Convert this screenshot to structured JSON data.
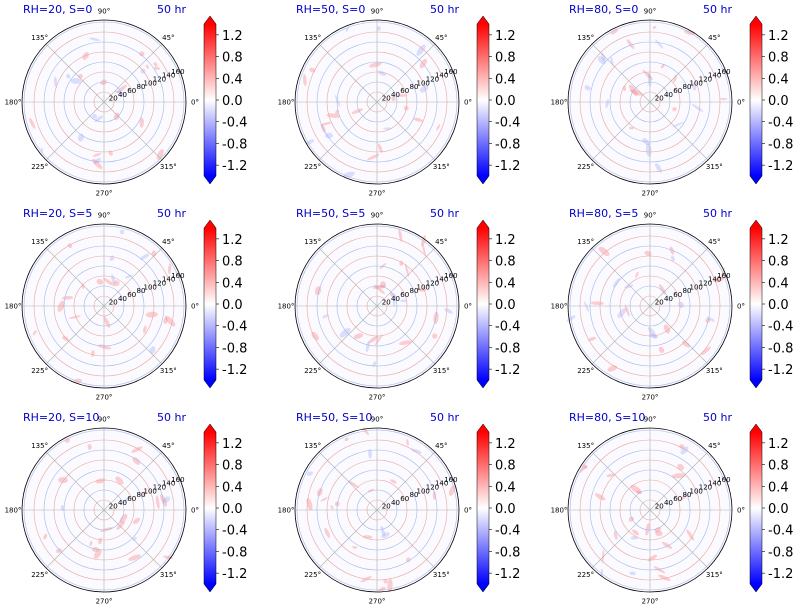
{
  "figure": {
    "rows": 3,
    "cols": 3
  },
  "colors": {
    "title": "#0000cc",
    "positive": "#ff0000",
    "negative": "#0000ff",
    "neutral": "#ffffff",
    "grid": "#b0b0b0"
  },
  "chart_data": [
    {
      "type": "heatmap",
      "projection": "polar",
      "title_left": "RH=20, S=0",
      "title_right": "50 hr",
      "radial_ticks": [
        "20",
        "40",
        "60",
        "80",
        "100",
        "120",
        "140",
        "160"
      ],
      "angle_ticks": [
        "0°",
        "45°",
        "90°",
        "135°",
        "180°",
        "225°",
        "270°",
        "315°"
      ],
      "colorbar_ticks": [
        "1.2",
        "0.8",
        "0.4",
        "0.0",
        "-0.4",
        "-0.8",
        "-1.2"
      ],
      "clim": [
        -1.4,
        1.4
      ],
      "colormap": "bwr",
      "extend": "both"
    },
    {
      "type": "heatmap",
      "projection": "polar",
      "title_left": "RH=50, S=0",
      "title_right": "50 hr",
      "radial_ticks": [
        "20",
        "40",
        "60",
        "80",
        "100",
        "120",
        "140",
        "160"
      ],
      "angle_ticks": [
        "0°",
        "45°",
        "90°",
        "135°",
        "180°",
        "225°",
        "270°",
        "315°"
      ],
      "colorbar_ticks": [
        "1.2",
        "0.8",
        "0.4",
        "0.0",
        "-0.4",
        "-0.8",
        "-1.2"
      ],
      "clim": [
        -1.4,
        1.4
      ],
      "colormap": "bwr",
      "extend": "both"
    },
    {
      "type": "heatmap",
      "projection": "polar",
      "title_left": "RH=80, S=0",
      "title_right": "50 hr",
      "radial_ticks": [
        "20",
        "40",
        "60",
        "80",
        "100",
        "120",
        "140",
        "160"
      ],
      "angle_ticks": [
        "0°",
        "45°",
        "90°",
        "135°",
        "180°",
        "225°",
        "270°",
        "315°"
      ],
      "colorbar_ticks": [
        "1.2",
        "0.8",
        "0.4",
        "0.0",
        "-0.4",
        "-0.8",
        "-1.2"
      ],
      "clim": [
        -1.4,
        1.4
      ],
      "colormap": "bwr",
      "extend": "both"
    },
    {
      "type": "heatmap",
      "projection": "polar",
      "title_left": "RH=20, S=5",
      "title_right": "50 hr",
      "radial_ticks": [
        "20",
        "40",
        "60",
        "80",
        "100",
        "120",
        "140",
        "160"
      ],
      "angle_ticks": [
        "0°",
        "45°",
        "90°",
        "135°",
        "180°",
        "225°",
        "270°",
        "315°"
      ],
      "colorbar_ticks": [
        "1.2",
        "0.8",
        "0.4",
        "0.0",
        "-0.4",
        "-0.8",
        "-1.2"
      ],
      "clim": [
        -1.4,
        1.4
      ],
      "colormap": "bwr",
      "extend": "both"
    },
    {
      "type": "heatmap",
      "projection": "polar",
      "title_left": "RH=50, S=5",
      "title_right": "50 hr",
      "radial_ticks": [
        "20",
        "40",
        "60",
        "80",
        "100",
        "120",
        "140",
        "160"
      ],
      "angle_ticks": [
        "0°",
        "45°",
        "90°",
        "135°",
        "180°",
        "225°",
        "270°",
        "315°"
      ],
      "colorbar_ticks": [
        "1.2",
        "0.8",
        "0.4",
        "0.0",
        "-0.4",
        "-0.8",
        "-1.2"
      ],
      "clim": [
        -1.4,
        1.4
      ],
      "colormap": "bwr",
      "extend": "both"
    },
    {
      "type": "heatmap",
      "projection": "polar",
      "title_left": "RH=80, S=5",
      "title_right": "50 hr",
      "radial_ticks": [
        "20",
        "40",
        "60",
        "80",
        "100",
        "120",
        "140",
        "160"
      ],
      "angle_ticks": [
        "0°",
        "45°",
        "90°",
        "135°",
        "180°",
        "225°",
        "270°",
        "315°"
      ],
      "colorbar_ticks": [
        "1.2",
        "0.8",
        "0.4",
        "0.0",
        "-0.4",
        "-0.8",
        "-1.2"
      ],
      "clim": [
        -1.4,
        1.4
      ],
      "colormap": "bwr",
      "extend": "both"
    },
    {
      "type": "heatmap",
      "projection": "polar",
      "title_left": "RH=20, S=10",
      "title_right": "50 hr",
      "radial_ticks": [
        "20",
        "40",
        "60",
        "80",
        "100",
        "120",
        "140",
        "160"
      ],
      "angle_ticks": [
        "0°",
        "45°",
        "90°",
        "135°",
        "180°",
        "225°",
        "270°",
        "315°"
      ],
      "colorbar_ticks": [
        "1.2",
        "0.8",
        "0.4",
        "0.0",
        "-0.4",
        "-0.8",
        "-1.2"
      ],
      "clim": [
        -1.4,
        1.4
      ],
      "colormap": "bwr",
      "extend": "both"
    },
    {
      "type": "heatmap",
      "projection": "polar",
      "title_left": "RH=50, S=10",
      "title_right": "50 hr",
      "radial_ticks": [
        "20",
        "40",
        "60",
        "80",
        "100",
        "120",
        "140",
        "160"
      ],
      "angle_ticks": [
        "0°",
        "45°",
        "90°",
        "135°",
        "180°",
        "225°",
        "270°",
        "315°"
      ],
      "colorbar_ticks": [
        "1.2",
        "0.8",
        "0.4",
        "0.0",
        "-0.4",
        "-0.8",
        "-1.2"
      ],
      "clim": [
        -1.4,
        1.4
      ],
      "colormap": "bwr",
      "extend": "both"
    },
    {
      "type": "heatmap",
      "projection": "polar",
      "title_left": "RH=80, S=10",
      "title_right": "50 hr",
      "radial_ticks": [
        "20",
        "40",
        "60",
        "80",
        "100",
        "120",
        "140",
        "160"
      ],
      "angle_ticks": [
        "0°",
        "45°",
        "90°",
        "135°",
        "180°",
        "225°",
        "270°",
        "315°"
      ],
      "colorbar_ticks": [
        "1.2",
        "0.8",
        "0.4",
        "0.0",
        "-0.4",
        "-0.8",
        "-1.2"
      ],
      "clim": [
        -1.4,
        1.4
      ],
      "colormap": "bwr",
      "extend": "both"
    }
  ]
}
